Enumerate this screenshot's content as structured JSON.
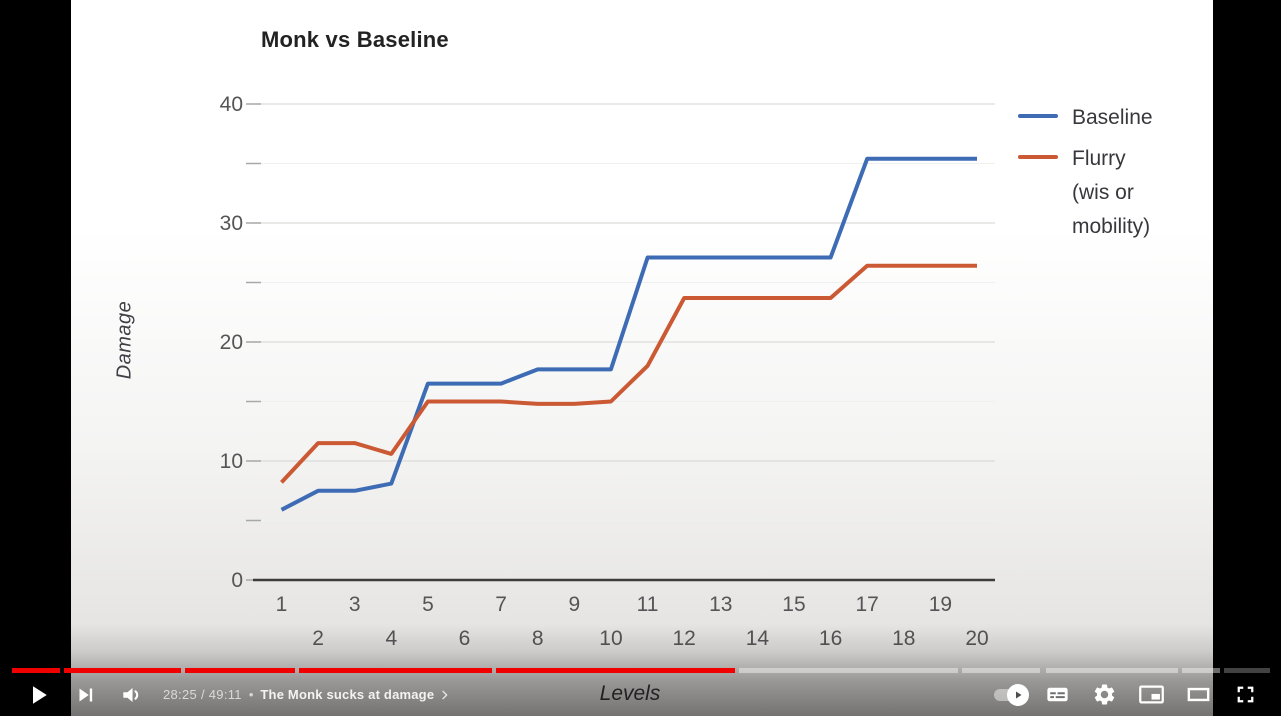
{
  "chart_data": {
    "type": "line",
    "title": "Monk vs Baseline",
    "xlabel": "Levels",
    "ylabel": "Damage",
    "x": [
      1,
      2,
      3,
      4,
      5,
      6,
      7,
      8,
      9,
      10,
      11,
      12,
      13,
      14,
      15,
      16,
      17,
      18,
      19,
      20
    ],
    "series": [
      {
        "name": "Baseline",
        "legend_label": "Baseline",
        "color": "#3d6cb5",
        "values": [
          5.9,
          7.5,
          7.5,
          8.1,
          16.5,
          16.5,
          16.5,
          17.7,
          17.7,
          17.7,
          27.1,
          27.1,
          27.1,
          27.1,
          27.1,
          27.1,
          35.4,
          35.4,
          35.4,
          35.4
        ]
      },
      {
        "name": "Flurry (wis or mobility)",
        "legend_label": "Flurry\n(wis or\nmobility)",
        "color": "#cb5a34",
        "values": [
          8.2,
          11.5,
          11.5,
          10.6,
          15,
          15,
          15,
          14.8,
          14.8,
          15,
          18,
          23.7,
          23.7,
          23.7,
          23.7,
          23.7,
          26.4,
          26.4,
          26.4,
          26.4
        ]
      }
    ],
    "ylim": [
      0,
      40
    ],
    "yticks_major": [
      0,
      10,
      20,
      30,
      40
    ],
    "yticks_minor": [
      5,
      15,
      25,
      35
    ],
    "grid": true,
    "legend_position": "right"
  },
  "player": {
    "time": "28:25 / 49:11",
    "separator": "•",
    "chapter_title": "The Monk sucks at damage",
    "icons_left": [
      "play-icon",
      "next-icon",
      "volume-icon"
    ],
    "icons_right": [
      "autoplay-toggle",
      "subtitles-icon",
      "settings-icon",
      "miniplayer-icon",
      "theater-icon",
      "fullscreen-icon"
    ],
    "progress": {
      "segments": [
        {
          "left_pct": 0.94,
          "width_pct": 3.75,
          "state": "watched"
        },
        {
          "left_pct": 5.0,
          "width_pct": 9.13,
          "state": "watched"
        },
        {
          "left_pct": 14.44,
          "width_pct": 8.59,
          "state": "watched"
        },
        {
          "left_pct": 23.34,
          "width_pct": 15.07,
          "state": "watched"
        },
        {
          "left_pct": 38.72,
          "width_pct": 18.66,
          "state": "watched"
        },
        {
          "left_pct": 57.69,
          "width_pct": 17.1,
          "state": "unwatched"
        },
        {
          "left_pct": 75.1,
          "width_pct": 6.09,
          "state": "unwatched"
        },
        {
          "left_pct": 81.65,
          "width_pct": 10.3,
          "state": "unwatched"
        },
        {
          "left_pct": 92.27,
          "width_pct": 2.97,
          "state": "unwatched"
        },
        {
          "left_pct": 95.55,
          "width_pct": 3.59,
          "state": "unwatched-dark"
        }
      ]
    },
    "colors": {
      "watched": "#f10000",
      "accent_blue": "#3d6cb5",
      "accent_orange": "#cb5a34"
    }
  }
}
